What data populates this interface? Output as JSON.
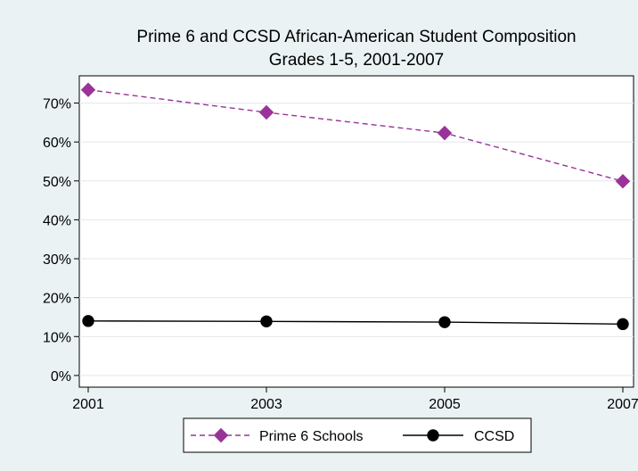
{
  "chart_data": {
    "type": "line",
    "title": "Prime 6 and CCSD African-American Student Composition",
    "subtitle": "Grades 1-5, 2001-2007",
    "xlabel": "",
    "ylabel": "",
    "x": [
      2001,
      2003,
      2005,
      2007
    ],
    "x_tick_labels": [
      "2001",
      "2003",
      "2005",
      "2007"
    ],
    "xlim": [
      2001,
      2007
    ],
    "y_tick_values": [
      0,
      10,
      20,
      30,
      40,
      50,
      60,
      70
    ],
    "y_tick_labels": [
      "0%",
      "10%",
      "20%",
      "30%",
      "40%",
      "50%",
      "60%",
      "70%"
    ],
    "ylim": [
      -3,
      77
    ],
    "grid": true,
    "legend_position": "bottom",
    "series": [
      {
        "name": "Prime 6 Schools",
        "values": [
          73.4,
          67.6,
          62.3,
          49.9
        ],
        "color": "#993399",
        "line_style": "dashed",
        "marker": "diamond"
      },
      {
        "name": "CCSD",
        "values": [
          14.0,
          13.9,
          13.7,
          13.2
        ],
        "color": "#000000",
        "line_style": "solid",
        "marker": "circle"
      }
    ]
  }
}
